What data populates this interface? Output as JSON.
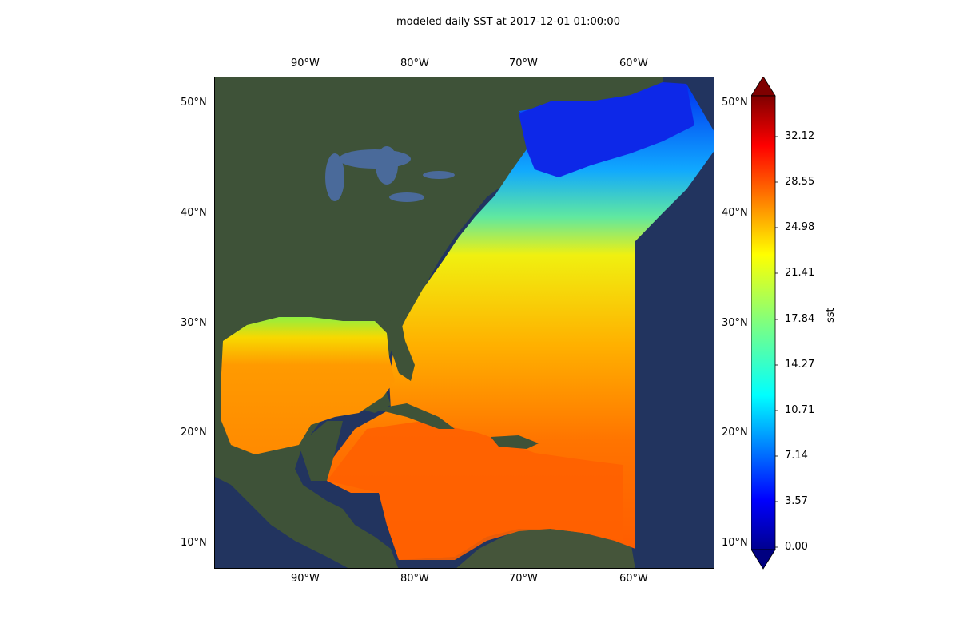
{
  "title": "modeled daily SST at 2017-12-01 01:00:00",
  "map": {
    "longitude_ticks": [
      "90°W",
      "80°W",
      "70°W",
      "60°W"
    ],
    "latitude_ticks": [
      "50°N",
      "40°N",
      "30°N",
      "20°N",
      "10°N"
    ],
    "extent_lon": [
      -98,
      -52
    ],
    "extent_lat": [
      8,
      52
    ]
  },
  "colorbar": {
    "label": "sst",
    "ticks": [
      "0.00",
      "3.57",
      "7.14",
      "10.71",
      "14.27",
      "17.84",
      "21.41",
      "24.98",
      "28.55",
      "32.12"
    ],
    "range": [
      0.0,
      35.7
    ],
    "extend": "both",
    "colormap": "jet"
  },
  "colors": {
    "ocean_background": "#22345f",
    "land": "#3e5238",
    "warm": "#ff5a00",
    "mid": "#f0f010",
    "cold": "#0020e0"
  }
}
